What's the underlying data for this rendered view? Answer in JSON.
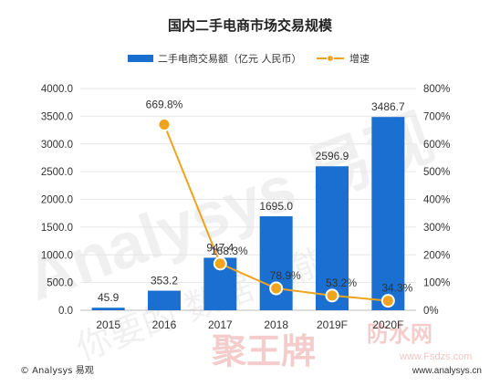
{
  "chart_data": {
    "type": "bar",
    "title": "国内二手电商市场交易规模",
    "categories": [
      "2015",
      "2016",
      "2017",
      "2018",
      "2019F",
      "2020F"
    ],
    "series": [
      {
        "name": "二手电商交易额（亿元 人民币）",
        "type": "bar",
        "axis": "left",
        "values": [
          45.9,
          353.2,
          947.4,
          1695.0,
          2596.9,
          3486.7
        ],
        "labels": [
          "45.9",
          "353.2",
          "947.4",
          "1695.0",
          "2596.9",
          "3486.7"
        ]
      },
      {
        "name": "增速",
        "type": "line",
        "axis": "right",
        "points": [
          {
            "x": "2016",
            "value": 669.8,
            "label": "669.8%"
          },
          {
            "x": "2017",
            "value": 168.3,
            "label": "168.3%"
          },
          {
            "x": "2018",
            "value": 78.9,
            "label": "78.9%"
          },
          {
            "x": "2019F",
            "value": 53.2,
            "label": "53.2%"
          },
          {
            "x": "2020F",
            "value": 34.3,
            "label": "34.3%"
          }
        ]
      }
    ],
    "y_left": {
      "ylim": [
        0,
        4000
      ],
      "ticks": [
        "0.0",
        "500.0",
        "1000.0",
        "1500.0",
        "2000.0",
        "2500.0",
        "3000.0",
        "3500.0",
        "4000.0"
      ]
    },
    "y_right": {
      "ylim": [
        0,
        800
      ],
      "ticks": [
        "0%",
        "100%",
        "200%",
        "300%",
        "400%",
        "500%",
        "600%",
        "700%",
        "800%"
      ]
    },
    "grid": true,
    "legend_position": "top-center",
    "colors": {
      "bar": "#1a6fd1",
      "line": "#f0a31c",
      "text": "#333333",
      "grid": "#e6e6e6"
    }
  },
  "footer": {
    "left": "© Analysys 易观",
    "right": "www.analysys.cn"
  },
  "watermarks": [
    "Analysys 易观",
    "你要的 数据 智能",
    "聚王牌",
    "防水网",
    "www.Fsdzs.com"
  ]
}
